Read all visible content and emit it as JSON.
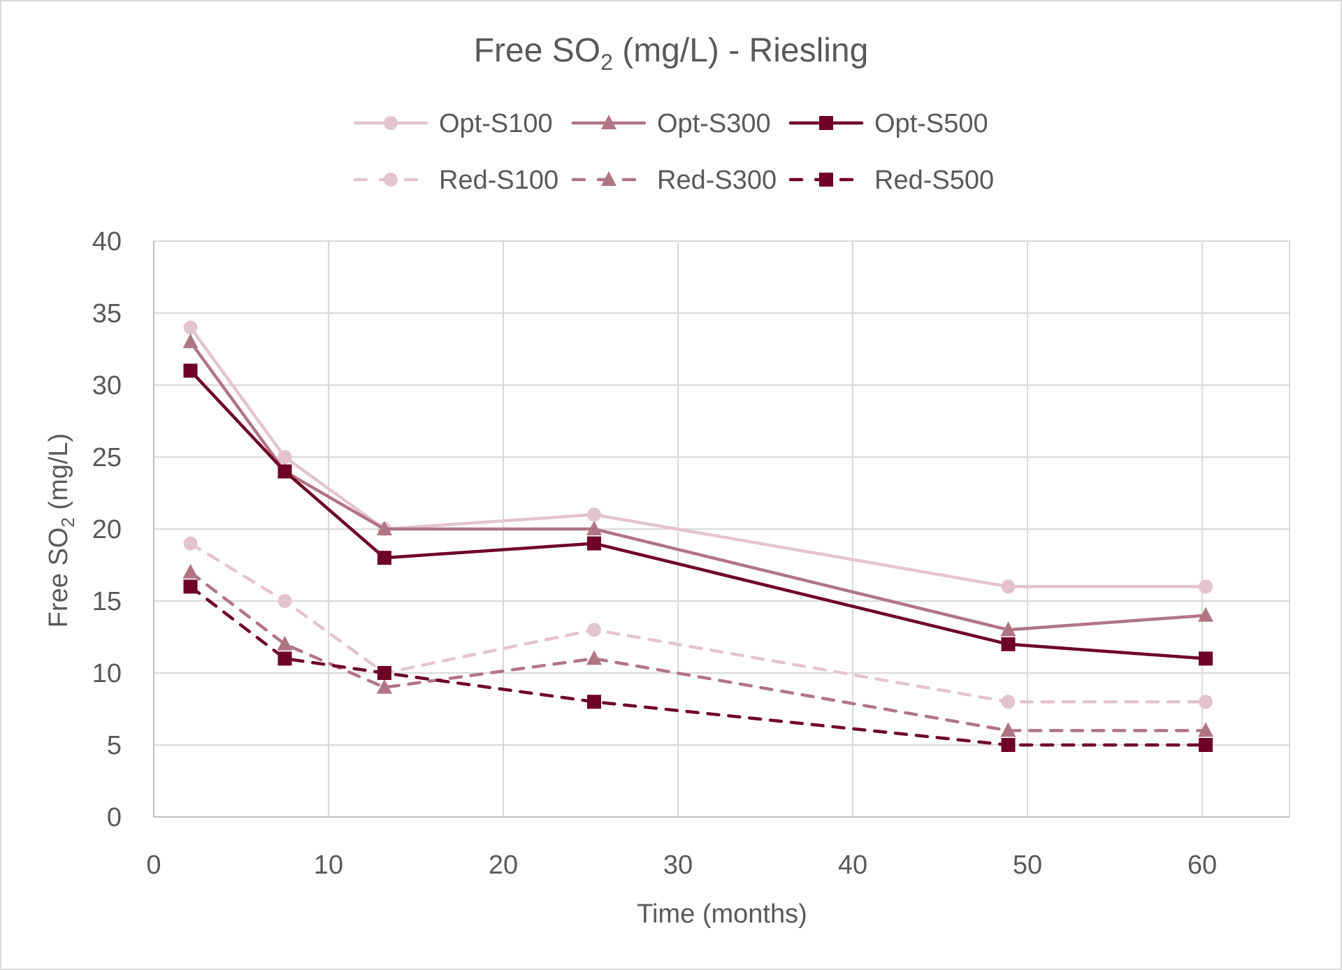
{
  "chart_data": {
    "type": "line",
    "title": "Free SO2 (mg/L) - Riesling",
    "title_parts": {
      "main": "Free SO",
      "sub": "2",
      "rest": " (mg/L) - Riesling"
    },
    "xlabel": "Time (months)",
    "ylabel": "Free SO2  (mg/L)",
    "ylabel_parts": {
      "main": "Free SO",
      "sub": "2",
      "rest": "  (mg/L)"
    },
    "xlim": [
      0,
      65
    ],
    "ylim": [
      0,
      40
    ],
    "xticks": [
      0,
      10,
      20,
      30,
      40,
      50,
      60
    ],
    "yticks": [
      0,
      5,
      10,
      15,
      20,
      25,
      30,
      35,
      40
    ],
    "grid": true,
    "legend_position": "top",
    "x": [
      2.1,
      7.5,
      13.2,
      25.2,
      48.9,
      60.2
    ],
    "series": [
      {
        "name": "Opt-S100",
        "values": [
          34,
          25,
          20,
          21,
          16,
          16
        ],
        "color": "#E3C4CE",
        "marker": "circle",
        "dash": false
      },
      {
        "name": "Opt-S300",
        "values": [
          33,
          24,
          20,
          20,
          13,
          14
        ],
        "color": "#B07585",
        "marker": "triangle",
        "dash": false
      },
      {
        "name": "Opt-S500",
        "values": [
          31,
          24,
          18,
          19,
          12,
          11
        ],
        "color": "#6E0026",
        "marker": "square",
        "dash": false
      },
      {
        "name": "Red-S100",
        "values": [
          19,
          15,
          10,
          13,
          8,
          8
        ],
        "color": "#E3C4CE",
        "marker": "circle",
        "dash": true
      },
      {
        "name": "Red-S300",
        "values": [
          17,
          12,
          9,
          11,
          6,
          6
        ],
        "color": "#B07585",
        "marker": "triangle",
        "dash": true
      },
      {
        "name": "Red-S500",
        "values": [
          16,
          11,
          10,
          8,
          5,
          5
        ],
        "color": "#6E0026",
        "marker": "square",
        "dash": true
      }
    ]
  }
}
